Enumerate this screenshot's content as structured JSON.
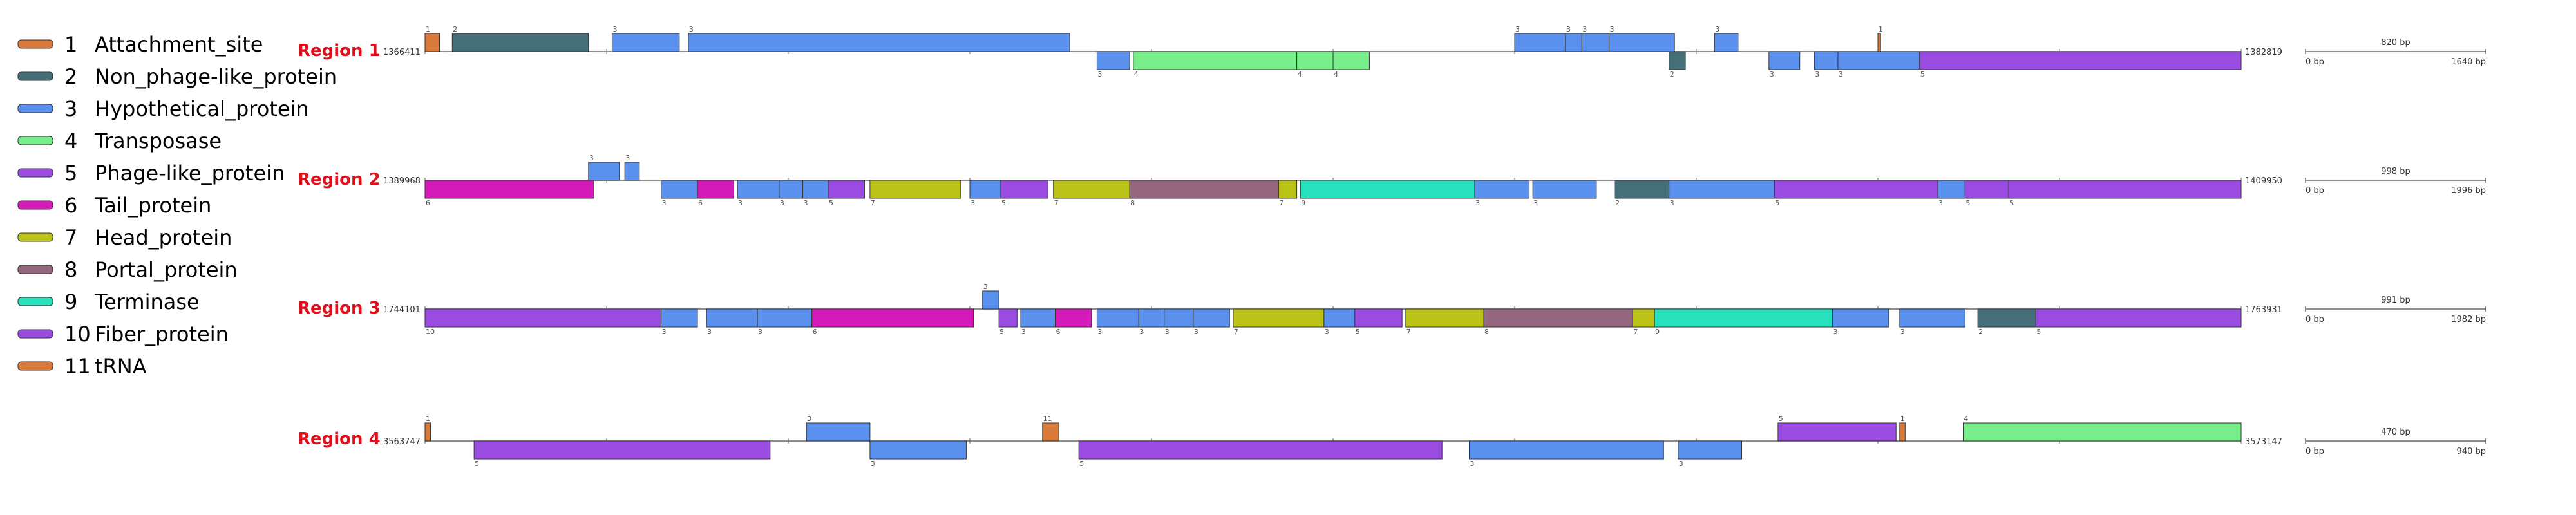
{
  "colors": {
    "1": "#d97a3a",
    "2": "#466e78",
    "3": "#5a91ee",
    "4": "#78ee8a",
    "5": "#9a4ce0",
    "6": "#d41ab8",
    "7": "#bcc318",
    "8": "#94677f",
    "9": "#27e2bc",
    "10": "#9a4ce0",
    "11": "#d97a3a"
  },
  "legend": [
    {
      "num": "1",
      "name": "Attachment_site"
    },
    {
      "num": "2",
      "name": "Non_phage-like_protein"
    },
    {
      "num": "3",
      "name": "Hypothetical_protein"
    },
    {
      "num": "4",
      "name": "Transposase"
    },
    {
      "num": "5",
      "name": "Phage-like_protein"
    },
    {
      "num": "6",
      "name": "Tail_protein"
    },
    {
      "num": "7",
      "name": "Head_protein"
    },
    {
      "num": "8",
      "name": "Portal_protein"
    },
    {
      "num": "9",
      "name": "Terminase"
    },
    {
      "num": "10",
      "name": "Fiber_protein"
    },
    {
      "num": "11",
      "name": "tRNA"
    }
  ],
  "regions": [
    {
      "label": "Region 1",
      "start": "1366411",
      "end": "1382819",
      "scale_mid": "820 bp",
      "scale_start": "0 bp",
      "scale_end": "1640 bp",
      "genes": [
        {
          "s": 0,
          "e": 0.008,
          "strand": "+",
          "type": "1"
        },
        {
          "s": 0.015,
          "e": 0.09,
          "strand": "+",
          "type": "2"
        },
        {
          "s": 0.103,
          "e": 0.14,
          "strand": "+",
          "type": "3"
        },
        {
          "s": 0.145,
          "e": 0.355,
          "strand": "+",
          "type": "3"
        },
        {
          "s": 0.37,
          "e": 0.388,
          "strand": "-",
          "type": "3"
        },
        {
          "s": 0.39,
          "e": 0.48,
          "strand": "-",
          "type": "4"
        },
        {
          "s": 0.48,
          "e": 0.5,
          "strand": "-",
          "type": "4"
        },
        {
          "s": 0.5,
          "e": 0.52,
          "strand": "-",
          "type": "4"
        },
        {
          "s": 0.6,
          "e": 0.628,
          "strand": "+",
          "type": "3"
        },
        {
          "s": 0.628,
          "e": 0.637,
          "strand": "+",
          "type": "3"
        },
        {
          "s": 0.637,
          "e": 0.652,
          "strand": "+",
          "type": "3"
        },
        {
          "s": 0.652,
          "e": 0.688,
          "strand": "+",
          "type": "3"
        },
        {
          "s": 0.685,
          "e": 0.694,
          "strand": "-",
          "type": "2"
        },
        {
          "s": 0.71,
          "e": 0.723,
          "strand": "+",
          "type": "3"
        },
        {
          "s": 0.74,
          "e": 0.757,
          "strand": "-",
          "type": "3"
        },
        {
          "s": 0.765,
          "e": 0.778,
          "strand": "-",
          "type": "3"
        },
        {
          "s": 0.778,
          "e": 0.823,
          "strand": "-",
          "type": "3"
        },
        {
          "s": 0.823,
          "e": 1.0,
          "strand": "-",
          "type": "5"
        },
        {
          "s": 0.8,
          "e": 0.8015,
          "strand": "+",
          "type": "1"
        }
      ]
    },
    {
      "label": "Region 2",
      "start": "1389968",
      "end": "1409950",
      "scale_mid": "998 bp",
      "scale_start": "0 bp",
      "scale_end": "1996 bp",
      "genes": [
        {
          "s": 0,
          "e": 0.093,
          "strand": "-",
          "type": "6"
        },
        {
          "s": 0.09,
          "e": 0.107,
          "strand": "+",
          "type": "3"
        },
        {
          "s": 0.11,
          "e": 0.118,
          "strand": "+",
          "type": "3"
        },
        {
          "s": 0.13,
          "e": 0.15,
          "strand": "-",
          "type": "3"
        },
        {
          "s": 0.15,
          "e": 0.17,
          "strand": "-",
          "type": "6"
        },
        {
          "s": 0.172,
          "e": 0.195,
          "strand": "-",
          "type": "3"
        },
        {
          "s": 0.195,
          "e": 0.208,
          "strand": "-",
          "type": "3"
        },
        {
          "s": 0.208,
          "e": 0.222,
          "strand": "-",
          "type": "3"
        },
        {
          "s": 0.222,
          "e": 0.242,
          "strand": "-",
          "type": "5"
        },
        {
          "s": 0.245,
          "e": 0.295,
          "strand": "-",
          "type": "7"
        },
        {
          "s": 0.3,
          "e": 0.317,
          "strand": "-",
          "type": "3"
        },
        {
          "s": 0.317,
          "e": 0.343,
          "strand": "-",
          "type": "5"
        },
        {
          "s": 0.346,
          "e": 0.388,
          "strand": "-",
          "type": "7"
        },
        {
          "s": 0.388,
          "e": 0.47,
          "strand": "-",
          "type": "8"
        },
        {
          "s": 0.47,
          "e": 0.48,
          "strand": "-",
          "type": "7"
        },
        {
          "s": 0.482,
          "e": 0.578,
          "strand": "-",
          "type": "9"
        },
        {
          "s": 0.578,
          "e": 0.608,
          "strand": "-",
          "type": "3"
        },
        {
          "s": 0.61,
          "e": 0.645,
          "strand": "-",
          "type": "3"
        },
        {
          "s": 0.655,
          "e": 0.685,
          "strand": "-",
          "type": "2"
        },
        {
          "s": 0.685,
          "e": 0.743,
          "strand": "-",
          "type": "3"
        },
        {
          "s": 0.743,
          "e": 0.833,
          "strand": "-",
          "type": "5"
        },
        {
          "s": 0.833,
          "e": 0.848,
          "strand": "-",
          "type": "3"
        },
        {
          "s": 0.848,
          "e": 0.872,
          "strand": "-",
          "type": "5"
        },
        {
          "s": 0.872,
          "e": 1.0,
          "strand": "-",
          "type": "5"
        }
      ]
    },
    {
      "label": "Region 3",
      "start": "1744101",
      "end": "1763931",
      "scale_mid": "991 bp",
      "scale_start": "0 bp",
      "scale_end": "1982 bp",
      "genes": [
        {
          "s": 0,
          "e": 0.13,
          "strand": "-",
          "type": "10"
        },
        {
          "s": 0.13,
          "e": 0.15,
          "strand": "-",
          "type": "3"
        },
        {
          "s": 0.155,
          "e": 0.183,
          "strand": "-",
          "type": "3"
        },
        {
          "s": 0.183,
          "e": 0.213,
          "strand": "-",
          "type": "3"
        },
        {
          "s": 0.213,
          "e": 0.302,
          "strand": "-",
          "type": "6"
        },
        {
          "s": 0.307,
          "e": 0.316,
          "strand": "+",
          "type": "3"
        },
        {
          "s": 0.316,
          "e": 0.326,
          "strand": "-",
          "type": "5"
        },
        {
          "s": 0.328,
          "e": 0.347,
          "strand": "-",
          "type": "3"
        },
        {
          "s": 0.347,
          "e": 0.367,
          "strand": "-",
          "type": "6"
        },
        {
          "s": 0.37,
          "e": 0.393,
          "strand": "-",
          "type": "3"
        },
        {
          "s": 0.393,
          "e": 0.407,
          "strand": "-",
          "type": "3"
        },
        {
          "s": 0.407,
          "e": 0.423,
          "strand": "-",
          "type": "3"
        },
        {
          "s": 0.423,
          "e": 0.443,
          "strand": "-",
          "type": "3"
        },
        {
          "s": 0.445,
          "e": 0.495,
          "strand": "-",
          "type": "7"
        },
        {
          "s": 0.495,
          "e": 0.512,
          "strand": "-",
          "type": "3"
        },
        {
          "s": 0.512,
          "e": 0.538,
          "strand": "-",
          "type": "5"
        },
        {
          "s": 0.54,
          "e": 0.583,
          "strand": "-",
          "type": "7"
        },
        {
          "s": 0.583,
          "e": 0.665,
          "strand": "-",
          "type": "8"
        },
        {
          "s": 0.665,
          "e": 0.677,
          "strand": "-",
          "type": "7"
        },
        {
          "s": 0.677,
          "e": 0.775,
          "strand": "-",
          "type": "9"
        },
        {
          "s": 0.775,
          "e": 0.806,
          "strand": "-",
          "type": "3"
        },
        {
          "s": 0.812,
          "e": 0.848,
          "strand": "-",
          "type": "3"
        },
        {
          "s": 0.855,
          "e": 0.887,
          "strand": "-",
          "type": "2"
        },
        {
          "s": 0.887,
          "e": 1.0,
          "strand": "-",
          "type": "5"
        }
      ]
    },
    {
      "label": "Region 4",
      "start": "3563747",
      "end": "3573147",
      "scale_mid": "470 bp",
      "scale_start": "0 bp",
      "scale_end": "940 bp",
      "genes": [
        {
          "s": 0,
          "e": 0.003,
          "strand": "+",
          "type": "1"
        },
        {
          "s": 0.027,
          "e": 0.19,
          "strand": "-",
          "type": "5"
        },
        {
          "s": 0.21,
          "e": 0.245,
          "strand": "+",
          "type": "3"
        },
        {
          "s": 0.245,
          "e": 0.298,
          "strand": "-",
          "type": "3"
        },
        {
          "s": 0.34,
          "e": 0.349,
          "strand": "+",
          "type": "11"
        },
        {
          "s": 0.36,
          "e": 0.56,
          "strand": "-",
          "type": "5"
        },
        {
          "s": 0.575,
          "e": 0.682,
          "strand": "-",
          "type": "3"
        },
        {
          "s": 0.69,
          "e": 0.725,
          "strand": "-",
          "type": "3"
        },
        {
          "s": 0.745,
          "e": 0.81,
          "strand": "+",
          "type": "5"
        },
        {
          "s": 0.812,
          "e": 0.815,
          "strand": "+",
          "type": "1"
        },
        {
          "s": 0.847,
          "e": 1.0,
          "strand": "+",
          "type": "4"
        }
      ]
    }
  ]
}
